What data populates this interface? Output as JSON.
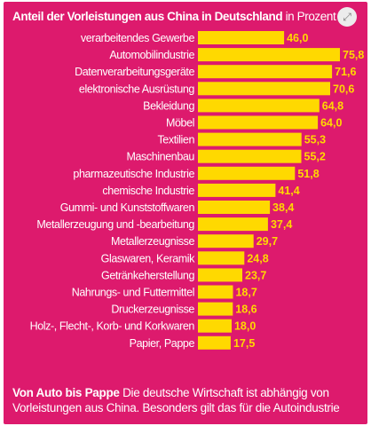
{
  "header": {
    "title": "Anteil der Vorleistungen aus China in Deutschland",
    "unit": "in Prozent"
  },
  "expand_icon": "expand-arrows-icon",
  "colors": {
    "background": "#dd1a6d",
    "bar": "#ffd900",
    "text": "#ffffff"
  },
  "chart_data": {
    "type": "bar",
    "orientation": "horizontal",
    "title": "Anteil der Vorleistungen aus China in Deutschland",
    "unit": "in Prozent",
    "categories": [
      "verarbeitendes Gewerbe",
      "Automobilindustrie",
      "Datenverarbeitungsgeräte",
      "elektronische Ausrüstung",
      "Bekleidung",
      "Möbel",
      "Textilien",
      "Maschinenbau",
      "pharmazeutische Industrie",
      "chemische Industrie",
      "Gummi- und Kunststoffwaren",
      "Metallerzeugung und -bearbeitung",
      "Metallerzeugnisse",
      "Glaswaren, Keramik",
      "Getränkeherstellung",
      "Nahrungs- und Futtermittel",
      "Druckerzeugnisse",
      "Holz-, Flecht-, Korb- und Korkwaren",
      "Papier, Pappe"
    ],
    "values": [
      46.0,
      75.8,
      71.6,
      70.6,
      64.8,
      64.0,
      55.3,
      55.2,
      51.8,
      41.4,
      38.4,
      37.4,
      29.7,
      24.8,
      23.7,
      18.7,
      18.6,
      18.0,
      17.5
    ],
    "value_labels": [
      "46,0",
      "75,8",
      "71,6",
      "70,6",
      "64,8",
      "64,0",
      "55,3",
      "55,2",
      "51,8",
      "41,4",
      "38,4",
      "37,4",
      "29,7",
      "24,8",
      "23,7",
      "18,7",
      "18,6",
      "18,0",
      "17,5"
    ],
    "xlim": [
      0,
      75.8
    ],
    "grid": false,
    "legend": "none"
  },
  "footer": {
    "headline": "Von Auto bis Pappe",
    "text": "Die deutsche Wirtschaft ist abhängig von Vorleistungen aus China. Besonders gilt das für die Autoindustrie"
  }
}
